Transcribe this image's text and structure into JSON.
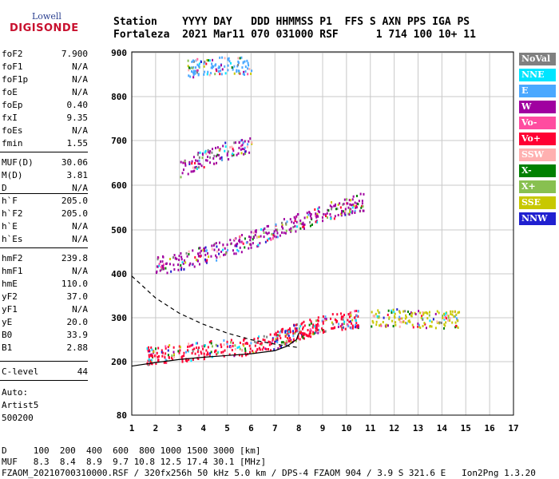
{
  "logo": {
    "line1": "Lowell",
    "line2": "DIGISONDE"
  },
  "header": {
    "line1": "Station    YYYY DAY   DDD HHMMSS P1  FFS S AXN PPS IGA PS",
    "line2": "Fortaleza  2021 Mar11 070 031000 RSF      1 714 100 10+ 11"
  },
  "params": [
    {
      "name": "foF2",
      "value": "7.900"
    },
    {
      "name": "foF1",
      "value": "N/A"
    },
    {
      "name": "foF1p",
      "value": "N/A"
    },
    {
      "name": "foE",
      "value": "N/A"
    },
    {
      "name": "foEp",
      "value": "0.40"
    },
    {
      "name": "fxI",
      "value": "9.35"
    },
    {
      "name": "foEs",
      "value": "N/A"
    },
    {
      "name": "fmin",
      "value": "1.55"
    },
    {
      "name": "MUF(D)",
      "value": "30.06"
    },
    {
      "name": "M(D)",
      "value": "3.81"
    },
    {
      "name": "D",
      "value": "N/A"
    },
    {
      "name": "h`F",
      "value": "205.0"
    },
    {
      "name": "h`F2",
      "value": "205.0"
    },
    {
      "name": "h`E",
      "value": "N/A"
    },
    {
      "name": "h`Es",
      "value": "N/A"
    },
    {
      "name": "hmF2",
      "value": "239.8"
    },
    {
      "name": "hmF1",
      "value": "N/A"
    },
    {
      "name": "hmE",
      "value": "110.0"
    },
    {
      "name": "yF2",
      "value": "37.0"
    },
    {
      "name": "yF1",
      "value": "N/A"
    },
    {
      "name": "yE",
      "value": "20.0"
    },
    {
      "name": "B0",
      "value": "33.9"
    },
    {
      "name": "B1",
      "value": "2.88"
    },
    {
      "name": "C-level",
      "value": "44"
    }
  ],
  "auto": {
    "line1": "Auto:",
    "line2": "Artist5",
    "line3": "500200"
  },
  "legend": [
    {
      "label": "NoVal",
      "bg": "#808080",
      "fg": "#ffffff"
    },
    {
      "label": "NNE",
      "bg": "#00e5ff",
      "fg": "#ffffff"
    },
    {
      "label": "E",
      "bg": "#4aa8ff",
      "fg": "#ffffff"
    },
    {
      "label": "W",
      "bg": "#a000a0",
      "fg": "#ffffff"
    },
    {
      "label": "Vo-",
      "bg": "#ff4ca0",
      "fg": "#ffffff"
    },
    {
      "label": "Vo+",
      "bg": "#ff0033",
      "fg": "#ffffff"
    },
    {
      "label": "SSW",
      "bg": "#ffb0b0",
      "fg": "#ffffff"
    },
    {
      "label": "X-",
      "bg": "#008000",
      "fg": "#ffffff"
    },
    {
      "label": "X+",
      "bg": "#88c050",
      "fg": "#ffffff"
    },
    {
      "label": "SSE",
      "bg": "#c8c800",
      "fg": "#ffffff"
    },
    {
      "label": "NNW",
      "bg": "#2020d0",
      "fg": "#ffffff"
    }
  ],
  "chart_data": {
    "type": "scatter",
    "title": "",
    "xlabel": "",
    "ylabel": "",
    "xlim": [
      1,
      17
    ],
    "ylim": [
      80,
      900
    ],
    "x_ticks": [
      1,
      2,
      3,
      4,
      5,
      6,
      7,
      8,
      9,
      10,
      11,
      12,
      13,
      14,
      15,
      16,
      17
    ],
    "y_ticks": [
      80,
      200,
      300,
      400,
      500,
      600,
      700,
      800,
      900
    ],
    "grid": true,
    "traces": [
      {
        "name": "F trace",
        "color": "#ff0033",
        "points": [
          [
            1.6,
            215
          ],
          [
            2.0,
            218
          ],
          [
            3.0,
            222
          ],
          [
            4.0,
            228
          ],
          [
            5.0,
            232
          ],
          [
            6.0,
            238
          ],
          [
            7.0,
            250
          ],
          [
            7.5,
            262
          ],
          [
            8.0,
            272
          ],
          [
            8.5,
            280
          ],
          [
            9.0,
            288
          ],
          [
            10.0,
            295
          ],
          [
            10.5,
            300
          ]
        ]
      },
      {
        "name": "F multi",
        "color": "#a000a0",
        "points": [
          [
            2.0,
            420
          ],
          [
            3.0,
            430
          ],
          [
            4.0,
            445
          ],
          [
            5.0,
            460
          ],
          [
            6.0,
            480
          ],
          [
            7.0,
            500
          ],
          [
            8.0,
            520
          ],
          [
            9.0,
            540
          ],
          [
            10.0,
            555
          ],
          [
            10.7,
            565
          ]
        ]
      },
      {
        "name": "F triple",
        "color": "#a000a0",
        "points": [
          [
            3.0,
            640
          ],
          [
            4.0,
            660
          ],
          [
            5.0,
            680
          ],
          [
            6.0,
            695
          ]
        ]
      },
      {
        "name": "oblique",
        "color": "#c8c800",
        "points": [
          [
            11.0,
            300
          ],
          [
            12.0,
            302
          ],
          [
            13.0,
            300
          ],
          [
            14.0,
            298
          ],
          [
            14.7,
            300
          ]
        ]
      },
      {
        "name": "top",
        "color": "#4aa8ff",
        "points": [
          [
            3.3,
            865
          ],
          [
            4.0,
            870
          ],
          [
            5.0,
            875
          ],
          [
            6.0,
            870
          ]
        ]
      }
    ],
    "profile": {
      "color": "#000000",
      "points": [
        [
          1.0,
          190
        ],
        [
          2.0,
          198
        ],
        [
          3.0,
          205
        ],
        [
          4.0,
          210
        ],
        [
          5.0,
          214
        ],
        [
          6.0,
          218
        ],
        [
          7.0,
          225
        ],
        [
          7.5,
          235
        ],
        [
          7.9,
          250
        ],
        [
          8.0,
          265
        ]
      ]
    },
    "dashed": {
      "color": "#000000",
      "points": [
        [
          1.0,
          395
        ],
        [
          1.5,
          370
        ],
        [
          2.0,
          345
        ],
        [
          3.0,
          310
        ],
        [
          4.0,
          285
        ],
        [
          5.0,
          265
        ],
        [
          6.0,
          250
        ],
        [
          7.0,
          240
        ],
        [
          8.0,
          232
        ]
      ]
    }
  },
  "footer": {
    "line1": "D     100  200  400  600  800 1000 1500 3000 [km]",
    "line2": "MUF   8.3  8.4  8.9  9.7 10.8 12.5 17.4 30.1 [MHz]",
    "line3": "FZAOM_20210700310000.RSF / 320fx256h 50 kHz 5.0 km / DPS-4 FZAOM 904 / 3.9 S 321.6 E   Ion2Png 1.3.20"
  }
}
